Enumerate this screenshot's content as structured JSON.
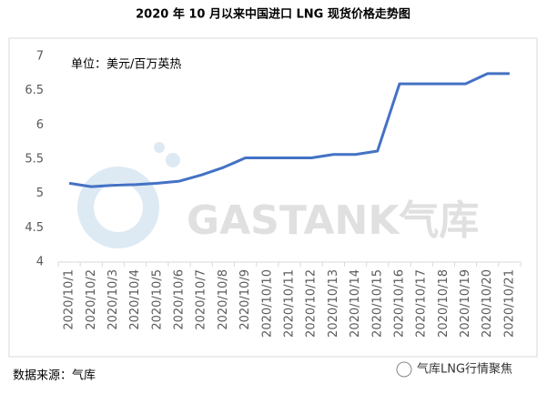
{
  "chart_data": {
    "type": "line",
    "title": "2020 年 10 月以来中国进口 LNG 现货价格走势图",
    "unit_note": "单位：美元/百万英热",
    "source": "数据来源：气库",
    "watermark": "GASTANK气库",
    "footer_brand": "气库LNG行情聚焦",
    "categories": [
      "2020/10/1",
      "2020/10/2",
      "2020/10/3",
      "2020/10/4",
      "2020/10/5",
      "2020/10/6",
      "2020/10/7",
      "2020/10/8",
      "2020/10/9",
      "2020/10/10",
      "2020/10/11",
      "2020/10/12",
      "2020/10/13",
      "2020/10/14",
      "2020/10/15",
      "2020/10/16",
      "2020/10/17",
      "2020/10/18",
      "2020/10/19",
      "2020/10/20",
      "2020/10/21"
    ],
    "values": [
      5.15,
      5.1,
      5.12,
      5.13,
      5.15,
      5.18,
      5.27,
      5.38,
      5.52,
      5.52,
      5.52,
      5.52,
      5.57,
      5.57,
      5.62,
      6.6,
      6.6,
      6.6,
      6.6,
      6.75,
      6.75
    ],
    "color": "#4472c4",
    "ylim": [
      4,
      7
    ],
    "yticks": [
      4,
      4.5,
      5,
      5.5,
      6,
      6.5,
      7
    ]
  }
}
